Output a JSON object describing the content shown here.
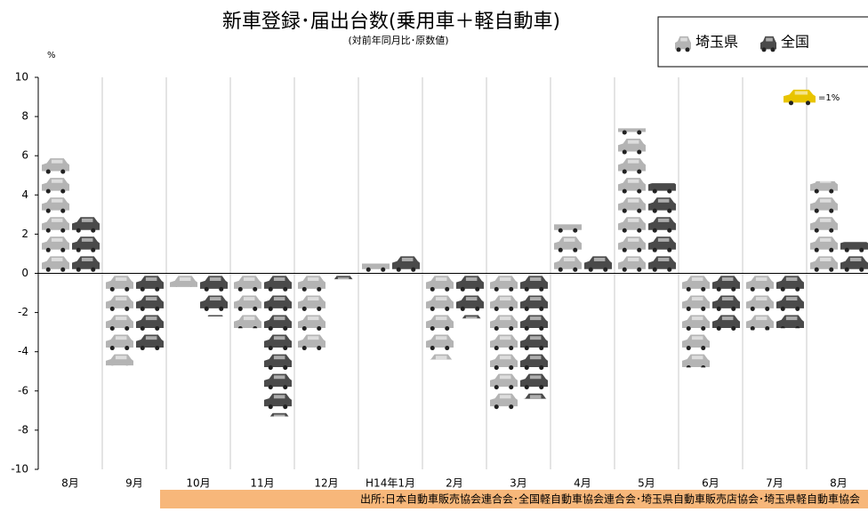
{
  "chart_data": {
    "type": "pictograph",
    "title": "新車登録･届出台数(乗用車＋軽自動車)",
    "subtitle": "(対前年同月比･原数値)",
    "y_unit": "%",
    "icon_label": "=1%",
    "source": "出所:日本自動車販売協会連合会･全国軽自動車協会連合会･埼玉県自動車販売店協会･埼玉県軽自動車協会",
    "categories": [
      "8月",
      "9月",
      "10月",
      "11月",
      "12月",
      "H14年1月",
      "2月",
      "3月",
      "4月",
      "5月",
      "6月",
      "7月",
      "8月"
    ],
    "series": [
      {
        "name": "埼玉県",
        "color": "#b4b4b4",
        "values": [
          6.0,
          -4.7,
          -0.7,
          -2.8,
          -4.1,
          0.5,
          -4.4,
          -7.1,
          2.5,
          7.4,
          -4.8,
          -2.9,
          4.7
        ]
      },
      {
        "name": "全国",
        "color": "#4a4a4a",
        "values": [
          3.0,
          -4.0,
          -2.2,
          -7.3,
          -0.3,
          1.0,
          -2.3,
          -6.4,
          1.0,
          4.6,
          -3.1,
          -2.8,
          1.6
        ]
      }
    ],
    "ylim": [
      -10,
      10
    ],
    "yticks": [
      -10,
      -8,
      -6,
      -4,
      -2,
      0,
      2,
      4,
      6,
      8,
      10
    ],
    "grid": true
  }
}
